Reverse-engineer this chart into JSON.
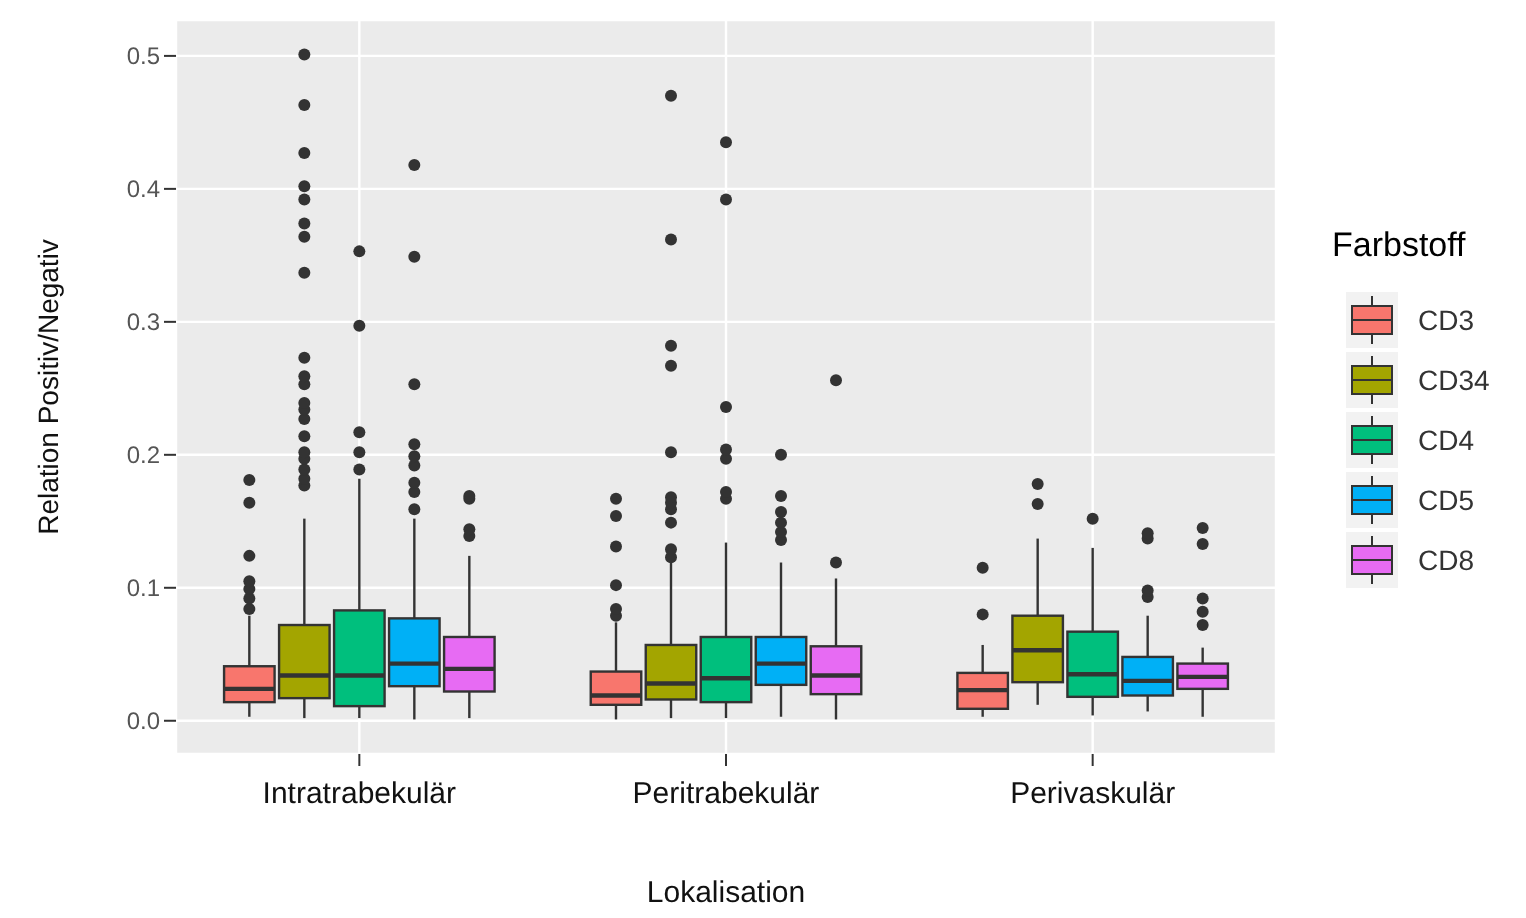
{
  "chart_data": {
    "type": "box",
    "xlabel": "Lokalisation",
    "ylabel": "Relation Positiv/Negativ",
    "legend_title": "Farbstoff",
    "legend": "right",
    "grid": true,
    "categories": [
      "Intratrabekulär",
      "Peritrabekulär",
      "Perivaskulär"
    ],
    "ylim": [
      -0.025,
      0.527
    ],
    "yticks": [
      {
        "value": 0,
        "label": "0.0"
      },
      0.1,
      0.2,
      0.3,
      0.4,
      0.5
    ],
    "series": [
      {
        "name": "CD3",
        "color": "#f8766d",
        "boxes": [
          {
            "low": 0.003,
            "q1": 0.014,
            "median": 0.024,
            "q3": 0.041,
            "high": 0.079,
            "outliers": [
              0.084,
              0.092,
              0.099,
              0.105,
              0.124,
              0.164,
              0.181
            ]
          },
          {
            "low": 0.001,
            "q1": 0.012,
            "median": 0.019,
            "q3": 0.037,
            "high": 0.074,
            "outliers": [
              0.079,
              0.084,
              0.102,
              0.131,
              0.154,
              0.167
            ]
          },
          {
            "low": 0.003,
            "q1": 0.009,
            "median": 0.023,
            "q3": 0.036,
            "high": 0.057,
            "outliers": [
              0.08,
              0.115
            ]
          }
        ]
      },
      {
        "name": "CD34",
        "color": "#a3a500",
        "boxes": [
          {
            "low": 0.002,
            "q1": 0.017,
            "median": 0.034,
            "q3": 0.072,
            "high": 0.152,
            "outliers": [
              0.177,
              0.182,
              0.189,
              0.197,
              0.202,
              0.214,
              0.227,
              0.234,
              0.239,
              0.253,
              0.259,
              0.273,
              0.337,
              0.364,
              0.374,
              0.392,
              0.402,
              0.427,
              0.463,
              0.501
            ]
          },
          {
            "low": 0.002,
            "q1": 0.016,
            "median": 0.028,
            "q3": 0.057,
            "high": 0.119,
            "outliers": [
              0.123,
              0.129,
              0.149,
              0.159,
              0.164,
              0.168,
              0.202,
              0.267,
              0.282,
              0.362,
              0.47
            ]
          },
          {
            "low": 0.012,
            "q1": 0.029,
            "median": 0.053,
            "q3": 0.079,
            "high": 0.137,
            "outliers": [
              0.163,
              0.178
            ]
          }
        ]
      },
      {
        "name": "CD4",
        "color": "#00bf7d",
        "boxes": [
          {
            "low": 0.002,
            "q1": 0.011,
            "median": 0.034,
            "q3": 0.083,
            "high": 0.182,
            "outliers": [
              0.189,
              0.202,
              0.217,
              0.297,
              0.353
            ]
          },
          {
            "low": 0.002,
            "q1": 0.014,
            "median": 0.032,
            "q3": 0.063,
            "high": 0.134,
            "outliers": [
              0.167,
              0.172,
              0.197,
              0.204,
              0.236,
              0.392,
              0.435
            ]
          },
          {
            "low": 0.004,
            "q1": 0.018,
            "median": 0.035,
            "q3": 0.067,
            "high": 0.13,
            "outliers": [
              0.152
            ]
          }
        ]
      },
      {
        "name": "CD5",
        "color": "#00b0f6",
        "boxes": [
          {
            "low": 0.001,
            "q1": 0.026,
            "median": 0.043,
            "q3": 0.077,
            "high": 0.152,
            "outliers": [
              0.159,
              0.172,
              0.179,
              0.192,
              0.199,
              0.208,
              0.253,
              0.349,
              0.418
            ]
          },
          {
            "low": 0.003,
            "q1": 0.027,
            "median": 0.043,
            "q3": 0.063,
            "high": 0.119,
            "outliers": [
              0.136,
              0.142,
              0.149,
              0.157,
              0.169,
              0.2
            ]
          },
          {
            "low": 0.007,
            "q1": 0.019,
            "median": 0.03,
            "q3": 0.048,
            "high": 0.079,
            "outliers": [
              0.093,
              0.098,
              0.137,
              0.141
            ]
          }
        ]
      },
      {
        "name": "CD8",
        "color": "#e76bf3",
        "boxes": [
          {
            "low": 0.002,
            "q1": 0.022,
            "median": 0.039,
            "q3": 0.063,
            "high": 0.124,
            "outliers": [
              0.139,
              0.144,
              0.167,
              0.169
            ]
          },
          {
            "low": 0.001,
            "q1": 0.02,
            "median": 0.034,
            "q3": 0.056,
            "high": 0.107,
            "outliers": [
              0.119,
              0.256
            ]
          },
          {
            "low": 0.003,
            "q1": 0.024,
            "median": 0.033,
            "q3": 0.043,
            "high": 0.055,
            "outliers": [
              0.072,
              0.082,
              0.092,
              0.133,
              0.145
            ]
          }
        ]
      }
    ]
  }
}
